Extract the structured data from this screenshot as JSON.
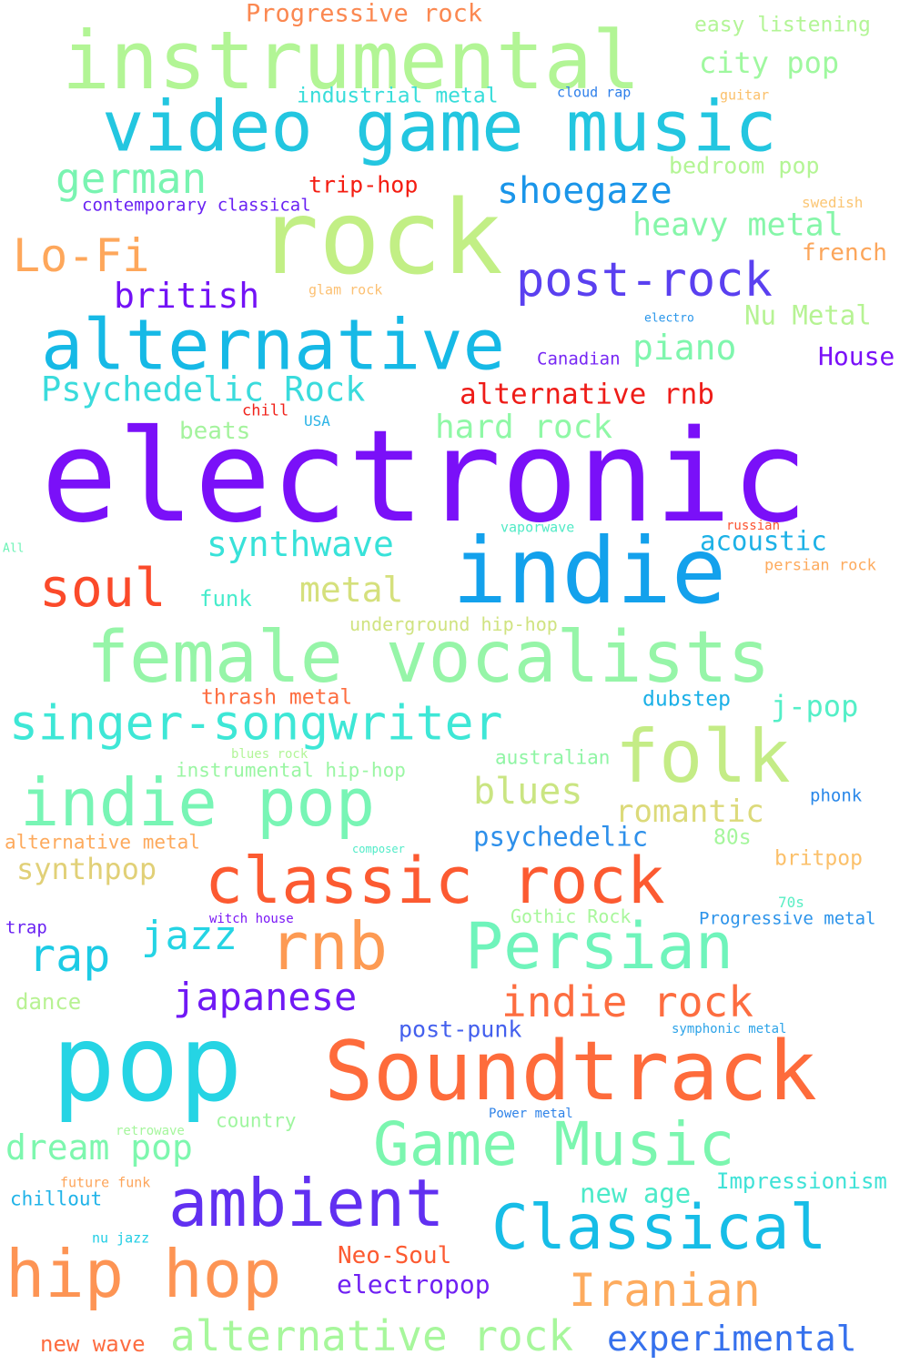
{
  "words": [
    {
      "text": "electronic",
      "color": "#7a10f8"
    },
    {
      "text": "rock",
      "color": "#c2ef85"
    },
    {
      "text": "instrumental",
      "color": "#b2f595"
    },
    {
      "text": "video game music",
      "color": "#23c6e0"
    },
    {
      "text": "indie",
      "color": "#13a1ec"
    },
    {
      "text": "pop",
      "color": "#25d4e4"
    },
    {
      "text": "Soundtrack",
      "color": "#fe6b3b"
    },
    {
      "text": "female vocalists",
      "color": "#96f5a8"
    },
    {
      "text": "alternative",
      "color": "#16b9e6"
    },
    {
      "text": "folk",
      "color": "#c4ec86"
    },
    {
      "text": "classic rock",
      "color": "#fc5a31"
    },
    {
      "text": "rnb",
      "color": "#fd9a53"
    },
    {
      "text": "Persian",
      "color": "#6ff4bb"
    },
    {
      "text": "indie pop",
      "color": "#78f5b5"
    },
    {
      "text": "Game Music",
      "color": "#7bf6af"
    },
    {
      "text": "ambient",
      "color": "#6130f1"
    },
    {
      "text": "hip hop",
      "color": "#fd9454"
    },
    {
      "text": "Classical",
      "color": "#17bde7"
    },
    {
      "text": "soul",
      "color": "#fb4a2a"
    },
    {
      "text": "singer-songwriter",
      "color": "#3ee7d6"
    },
    {
      "text": "post-rock",
      "color": "#5a40f0"
    },
    {
      "text": "Iranian",
      "color": "#fdab5e"
    },
    {
      "text": "alternative rock",
      "color": "#a7f79c"
    },
    {
      "text": "indie rock",
      "color": "#fd6d40"
    },
    {
      "text": "german",
      "color": "#79f4b1"
    },
    {
      "text": "Lo-Fi",
      "color": "#fea75b"
    },
    {
      "text": "rap",
      "color": "#1dcbe5"
    },
    {
      "text": "japanese",
      "color": "#7019f5"
    },
    {
      "text": "experimental",
      "color": "#3671ed"
    },
    {
      "text": "jazz",
      "color": "#25d4e4"
    },
    {
      "text": "shoegaze",
      "color": "#1a95e9"
    },
    {
      "text": "blues",
      "color": "#cae582"
    },
    {
      "text": "dream pop",
      "color": "#7df7ae"
    },
    {
      "text": "british",
      "color": "#7312f6"
    },
    {
      "text": "Psychedelic Rock",
      "color": "#3adbdc"
    },
    {
      "text": "hard rock",
      "color": "#8ff8a6"
    },
    {
      "text": "synthwave",
      "color": "#38e2d9"
    },
    {
      "text": "metal",
      "color": "#d5e07c"
    },
    {
      "text": "piano",
      "color": "#7ff6ad"
    },
    {
      "text": "heavy metal",
      "color": "#86f6a9"
    },
    {
      "text": "romantic",
      "color": "#dcda7a"
    },
    {
      "text": "city pop",
      "color": "#9ff89f"
    },
    {
      "text": "alternative rnb",
      "color": "#ee1c18"
    },
    {
      "text": "synthpop",
      "color": "#e1d077"
    },
    {
      "text": "Progressive rock",
      "color": "#fb8851"
    },
    {
      "text": "psychedelic",
      "color": "#2d8fea"
    },
    {
      "text": "j-pop",
      "color": "#54efc7"
    },
    {
      "text": "new age",
      "color": "#4ceac9"
    },
    {
      "text": "Impressionism",
      "color": "#3fe2d7"
    },
    {
      "text": "Neo-Soul",
      "color": "#fc5a31"
    },
    {
      "text": "electropop",
      "color": "#7020f3"
    },
    {
      "text": "post-punk",
      "color": "#4460ee"
    },
    {
      "text": "acoustic",
      "color": "#1cb1e6"
    },
    {
      "text": "House",
      "color": "#7a10f8"
    },
    {
      "text": "Nu Metal",
      "color": "#b6f393"
    },
    {
      "text": "french",
      "color": "#fca65b"
    },
    {
      "text": "bedroom pop",
      "color": "#b4f595"
    },
    {
      "text": "easy listening",
      "color": "#b3f596"
    },
    {
      "text": "britpop",
      "color": "#fbc06a"
    },
    {
      "text": "new wave",
      "color": "#fd6c40"
    },
    {
      "text": "trip-hop",
      "color": "#f41d12"
    },
    {
      "text": "beats",
      "color": "#a4f39d"
    },
    {
      "text": "dubstep",
      "color": "#1bb0e7"
    },
    {
      "text": "funk",
      "color": "#47eccc"
    },
    {
      "text": "80s",
      "color": "#a5f69c"
    },
    {
      "text": "thrash metal",
      "color": "#fd6d40"
    },
    {
      "text": "underground hip-hop",
      "color": "#d0e380"
    },
    {
      "text": "instrumental hip-hop",
      "color": "#9af6a3"
    },
    {
      "text": "dance",
      "color": "#b8f293"
    },
    {
      "text": "country",
      "color": "#9ff69f"
    },
    {
      "text": "chillout",
      "color": "#20b3e8"
    },
    {
      "text": "industrial metal",
      "color": "#38ddda"
    },
    {
      "text": "australian",
      "color": "#8ff5a4"
    },
    {
      "text": "alternative metal",
      "color": "#fdaa5d"
    },
    {
      "text": "Gothic Rock",
      "color": "#a8f79b"
    },
    {
      "text": "Progressive metal",
      "color": "#2b93ea"
    },
    {
      "text": "contemporary classical",
      "color": "#6a22f3"
    },
    {
      "text": "Canadian",
      "color": "#7727f4"
    },
    {
      "text": "trap",
      "color": "#6a22f3"
    },
    {
      "text": "phonk",
      "color": "#2a88e9"
    },
    {
      "text": "persian rock",
      "color": "#fdaa5d"
    },
    {
      "text": "glam rock",
      "color": "#fcc072"
    },
    {
      "text": "symphonic metal",
      "color": "#2ca3e8"
    },
    {
      "text": "vaporwave",
      "color": "#51eac6"
    },
    {
      "text": "70s",
      "color": "#58eec3"
    },
    {
      "text": "nu jazz",
      "color": "#1fcde4"
    },
    {
      "text": "Power metal",
      "color": "#2f83e8"
    },
    {
      "text": "chill",
      "color": "#f0221a"
    },
    {
      "text": "USA",
      "color": "#2ab3e6"
    },
    {
      "text": "cloud rap",
      "color": "#2d7fea"
    },
    {
      "text": "blues rock",
      "color": "#b2f597"
    },
    {
      "text": "swedish",
      "color": "#fbc674"
    },
    {
      "text": "russian",
      "color": "#fc5330"
    },
    {
      "text": "future funk",
      "color": "#fda55b"
    },
    {
      "text": "witch house",
      "color": "#7a18f5"
    },
    {
      "text": "retrowave",
      "color": "#a5f69c"
    },
    {
      "text": "electro",
      "color": "#2996ea"
    },
    {
      "text": "composer",
      "color": "#50ebc7"
    },
    {
      "text": "guitar",
      "color": "#fbc06a"
    },
    {
      "text": "All",
      "color": "#6cf3b6"
    }
  ]
}
